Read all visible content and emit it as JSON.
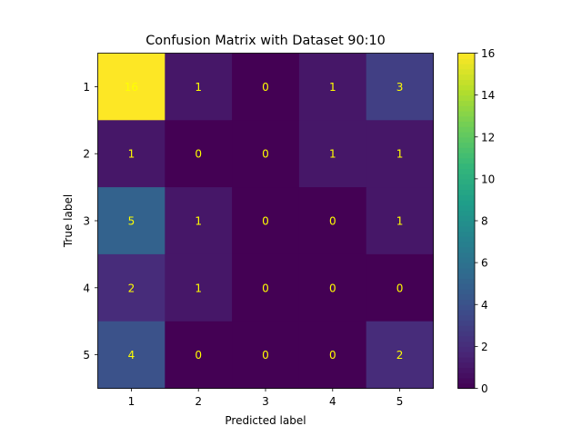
{
  "chart_data": {
    "type": "heatmap",
    "title": "Confusion Matrix with Dataset 90:10",
    "xlabel": "Predicted label",
    "ylabel": "True label",
    "x_categories": [
      "1",
      "2",
      "3",
      "4",
      "5"
    ],
    "y_categories": [
      "1",
      "2",
      "3",
      "4",
      "5"
    ],
    "values": [
      [
        16,
        1,
        0,
        1,
        3
      ],
      [
        1,
        0,
        0,
        1,
        1
      ],
      [
        5,
        1,
        0,
        0,
        1
      ],
      [
        2,
        1,
        0,
        0,
        0
      ],
      [
        4,
        0,
        0,
        0,
        2
      ]
    ],
    "colorscale": "viridis",
    "cell_text_color": "#ffff00",
    "colorbar": {
      "range": [
        0,
        16
      ],
      "ticks": [
        "0",
        "2",
        "4",
        "6",
        "8",
        "10",
        "12",
        "14",
        "16"
      ]
    }
  }
}
